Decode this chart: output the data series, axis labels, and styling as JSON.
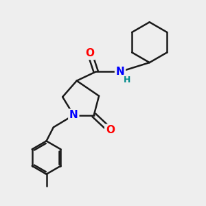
{
  "background_color": "#eeeeee",
  "bond_color": "#1a1a1a",
  "bond_width": 1.8,
  "figsize": [
    3.0,
    3.0
  ],
  "dpi": 100,
  "atom_colors": {
    "O": "#ff0000",
    "N": "#0000ff",
    "H": "#008b8b",
    "C": "#1a1a1a"
  }
}
